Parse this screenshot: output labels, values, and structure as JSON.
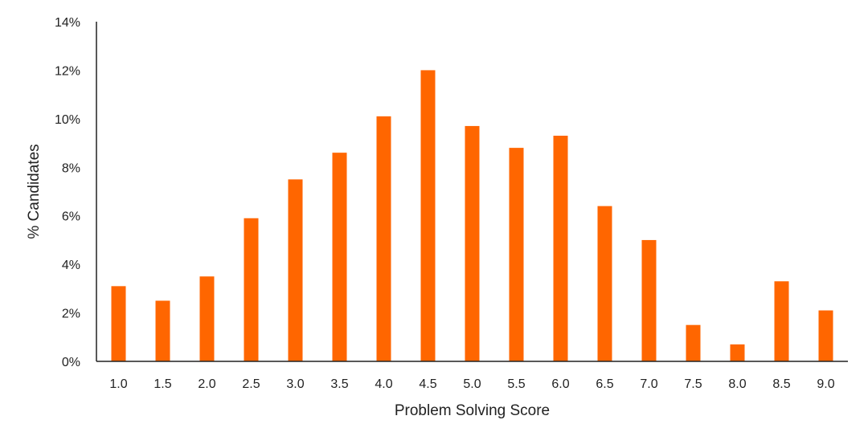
{
  "chart_data": {
    "type": "bar",
    "title": "",
    "xlabel": "Problem Solving Score",
    "ylabel": "% Candidates",
    "categories": [
      "1.0",
      "1.5",
      "2.0",
      "2.5",
      "3.0",
      "3.5",
      "4.0",
      "4.5",
      "5.0",
      "5.5",
      "6.0",
      "6.5",
      "7.0",
      "7.5",
      "8.0",
      "8.5",
      "9.0"
    ],
    "values": [
      3.1,
      2.5,
      3.5,
      5.9,
      7.5,
      8.6,
      10.1,
      12.0,
      9.7,
      8.8,
      9.3,
      6.4,
      5.0,
      1.5,
      0.7,
      3.3,
      2.1
    ],
    "ylim": [
      0,
      14
    ],
    "yticks": [
      0,
      2,
      4,
      6,
      8,
      10,
      12,
      14
    ],
    "y_tick_suffix": "%",
    "bar_color": "#FF6600",
    "grid": false,
    "legend": "none"
  }
}
